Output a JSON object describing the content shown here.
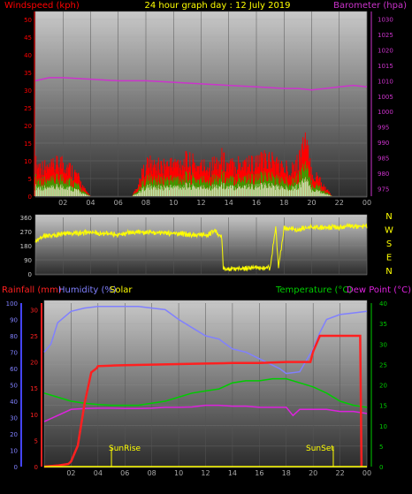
{
  "header": {
    "left_label": "Windspeed (kph)",
    "title": "24 hour graph day : 12 July 2019",
    "right_label": "Barometer (hpa)"
  },
  "legend": {
    "rainfall": "Rainfall (mm)",
    "humidity": "Humidity (%)",
    "solar": "Solar",
    "temperature": "Temperature (°C)",
    "dew_point": "Dew Point (°C)"
  },
  "annotations": {
    "sunrise": "SunRise",
    "sunset": "SunSet"
  },
  "colors": {
    "windspeed": "#ff0000",
    "gust": "#00cc00",
    "wind_low": "#ccffcc",
    "barometer": "#cc33cc",
    "direction": "#ffff00",
    "rainfall": "#ff2020",
    "humidity": "#8080ff",
    "solar": "#ffff00",
    "temperature": "#00cc00",
    "dewpoint": "#dd22dd",
    "compass": "#ffff00"
  },
  "chart_data": [
    {
      "type": "area",
      "title": "24 hour graph day : 12 July 2019",
      "x_ticks": [
        "02",
        "04",
        "06",
        "08",
        "10",
        "12",
        "14",
        "16",
        "18",
        "20",
        "22",
        "00"
      ],
      "y_left": {
        "label": "Windspeed (kph)",
        "ticks": [
          0,
          5,
          10,
          15,
          20,
          25,
          30,
          35,
          40,
          45,
          50
        ],
        "range": [
          0,
          50
        ]
      },
      "y_right": {
        "label": "Barometer (hpa)",
        "ticks": [
          975,
          980,
          985,
          990,
          995,
          1000,
          1005,
          1010,
          1015,
          1020,
          1025,
          1030
        ],
        "range": [
          972.5,
          1032.5
        ]
      },
      "series": [
        {
          "name": "Windspeed",
          "axis": "left",
          "hours": [
            0,
            1,
            2,
            3,
            3.5,
            4,
            7,
            7.5,
            8,
            9,
            10,
            11,
            12,
            13,
            13.5,
            14,
            15,
            16,
            17,
            18,
            19,
            19.5,
            20,
            20.5,
            21,
            21.5,
            22,
            23,
            24
          ],
          "values": [
            12,
            10,
            13,
            8,
            3,
            0,
            0,
            5,
            12,
            11,
            12,
            13,
            11,
            12,
            14,
            11,
            13,
            12,
            14,
            10,
            12,
            22,
            8,
            7,
            3,
            0,
            0,
            0,
            0
          ]
        },
        {
          "name": "Barometer",
          "axis": "right",
          "hours": [
            0,
            1,
            2,
            4,
            6,
            8,
            10,
            12,
            14,
            16,
            18,
            19,
            20,
            21,
            22,
            23,
            24
          ],
          "values": [
            1010,
            1011,
            1011,
            1010.5,
            1010,
            1010,
            1009.5,
            1009,
            1008.5,
            1008,
            1007.5,
            1007.5,
            1007,
            1007.5,
            1008,
            1008.5,
            1008
          ]
        }
      ]
    },
    {
      "type": "line",
      "x_ticks": [
        "02",
        "04",
        "06",
        "08",
        "10",
        "12",
        "14",
        "16",
        "18",
        "20",
        "22",
        "00"
      ],
      "y_left": {
        "ticks": [
          0,
          90,
          180,
          270,
          360
        ],
        "range": [
          0,
          360
        ]
      },
      "y_right": {
        "ticks": [
          "N",
          "W",
          "S",
          "E",
          "N"
        ]
      },
      "series": [
        {
          "name": "Wind Direction",
          "hours": [
            0,
            0.5,
            2,
            4,
            6,
            7,
            8,
            10,
            12,
            12.5,
            13,
            13.5,
            13.6,
            15,
            17,
            17.4,
            17.6,
            18,
            18.5,
            19,
            20,
            22,
            24
          ],
          "values": [
            200,
            240,
            255,
            265,
            250,
            265,
            265,
            260,
            245,
            250,
            275,
            230,
            30,
            35,
            40,
            300,
            40,
            295,
            285,
            285,
            295,
            300,
            305
          ]
        }
      ]
    },
    {
      "type": "line",
      "x_ticks": [
        "02",
        "04",
        "06",
        "08",
        "10",
        "12",
        "14",
        "16",
        "18",
        "20",
        "22",
        "00"
      ],
      "y_left_outer": {
        "label": "Humidity (%)",
        "ticks": [
          0,
          10,
          20,
          30,
          40,
          50,
          60,
          70,
          80,
          90,
          100
        ],
        "range": [
          0,
          100
        ]
      },
      "y_left_inner": {
        "label": "Rainfall (mm)",
        "ticks": [
          0,
          5,
          10,
          15,
          20,
          25,
          30
        ],
        "range": [
          0,
          30
        ]
      },
      "y_right": {
        "label": "Temperature (°C) / Dew Point (°C)",
        "ticks": [
          0,
          5,
          10,
          15,
          20,
          25,
          30,
          35,
          40
        ],
        "range": [
          0,
          40
        ]
      },
      "series": [
        {
          "name": "Humidity",
          "axis": "left_outer",
          "hours": [
            0,
            0.5,
            1,
            2,
            3,
            4,
            5,
            7,
            8,
            9,
            10,
            11,
            12,
            13,
            14,
            15,
            16,
            17,
            17.5,
            18,
            19,
            20,
            20.5,
            21,
            22,
            23,
            24
          ],
          "values": [
            70,
            75,
            88,
            95,
            97,
            98,
            98,
            98,
            97,
            96,
            90,
            85,
            80,
            78,
            72,
            70,
            66,
            62,
            60,
            57,
            58,
            72,
            82,
            90,
            93,
            94,
            95
          ]
        },
        {
          "name": "Rainfall",
          "axis": "left_inner",
          "hours": [
            0,
            1,
            1.8,
            2,
            2.5,
            3,
            3.5,
            3.9,
            4,
            5,
            6,
            8,
            10,
            12,
            14,
            16,
            18,
            19,
            19.8,
            20,
            20.5,
            23.5,
            23.6
          ],
          "values": [
            0,
            0.2,
            0.5,
            1,
            4,
            12,
            18,
            18.8,
            19.2,
            19.3,
            19.4,
            19.5,
            19.6,
            19.7,
            19.8,
            19.8,
            20,
            20,
            20,
            22,
            25,
            25,
            0
          ]
        },
        {
          "name": "Temperature",
          "axis": "right",
          "hours": [
            0,
            1,
            2,
            3,
            4,
            5,
            6,
            7,
            8,
            9,
            10,
            11,
            12,
            13,
            14,
            15,
            16,
            17,
            18,
            19,
            20,
            21,
            22,
            23,
            24
          ],
          "values": [
            18,
            17,
            16,
            15.5,
            15.2,
            15,
            15,
            15,
            15.5,
            16,
            17,
            18,
            18.5,
            19,
            20.5,
            21,
            21,
            21.5,
            21.5,
            20.5,
            19.5,
            18,
            16,
            15,
            14.5
          ]
        },
        {
          "name": "Dew Point",
          "axis": "right",
          "hours": [
            0,
            1,
            2,
            3,
            4,
            5,
            6,
            7,
            8,
            9,
            10,
            11,
            12,
            13,
            14,
            15,
            16,
            17,
            18,
            18.5,
            19,
            20,
            21,
            22,
            23,
            24
          ],
          "values": [
            11,
            12.5,
            14,
            14.2,
            14.3,
            14.3,
            14.2,
            14.2,
            14.3,
            14.5,
            14.5,
            14.6,
            15,
            15,
            14.8,
            14.8,
            14.5,
            14.5,
            14.5,
            12.5,
            14,
            14,
            14,
            13.5,
            13.5,
            13
          ]
        },
        {
          "name": "Solar",
          "axis": "left_outer",
          "hours": [
            0,
            24
          ],
          "values": [
            0,
            0
          ]
        }
      ],
      "markers": [
        {
          "label": "SunRise",
          "hour": 5
        },
        {
          "label": "SunSet",
          "hour": 21.5
        }
      ]
    }
  ]
}
